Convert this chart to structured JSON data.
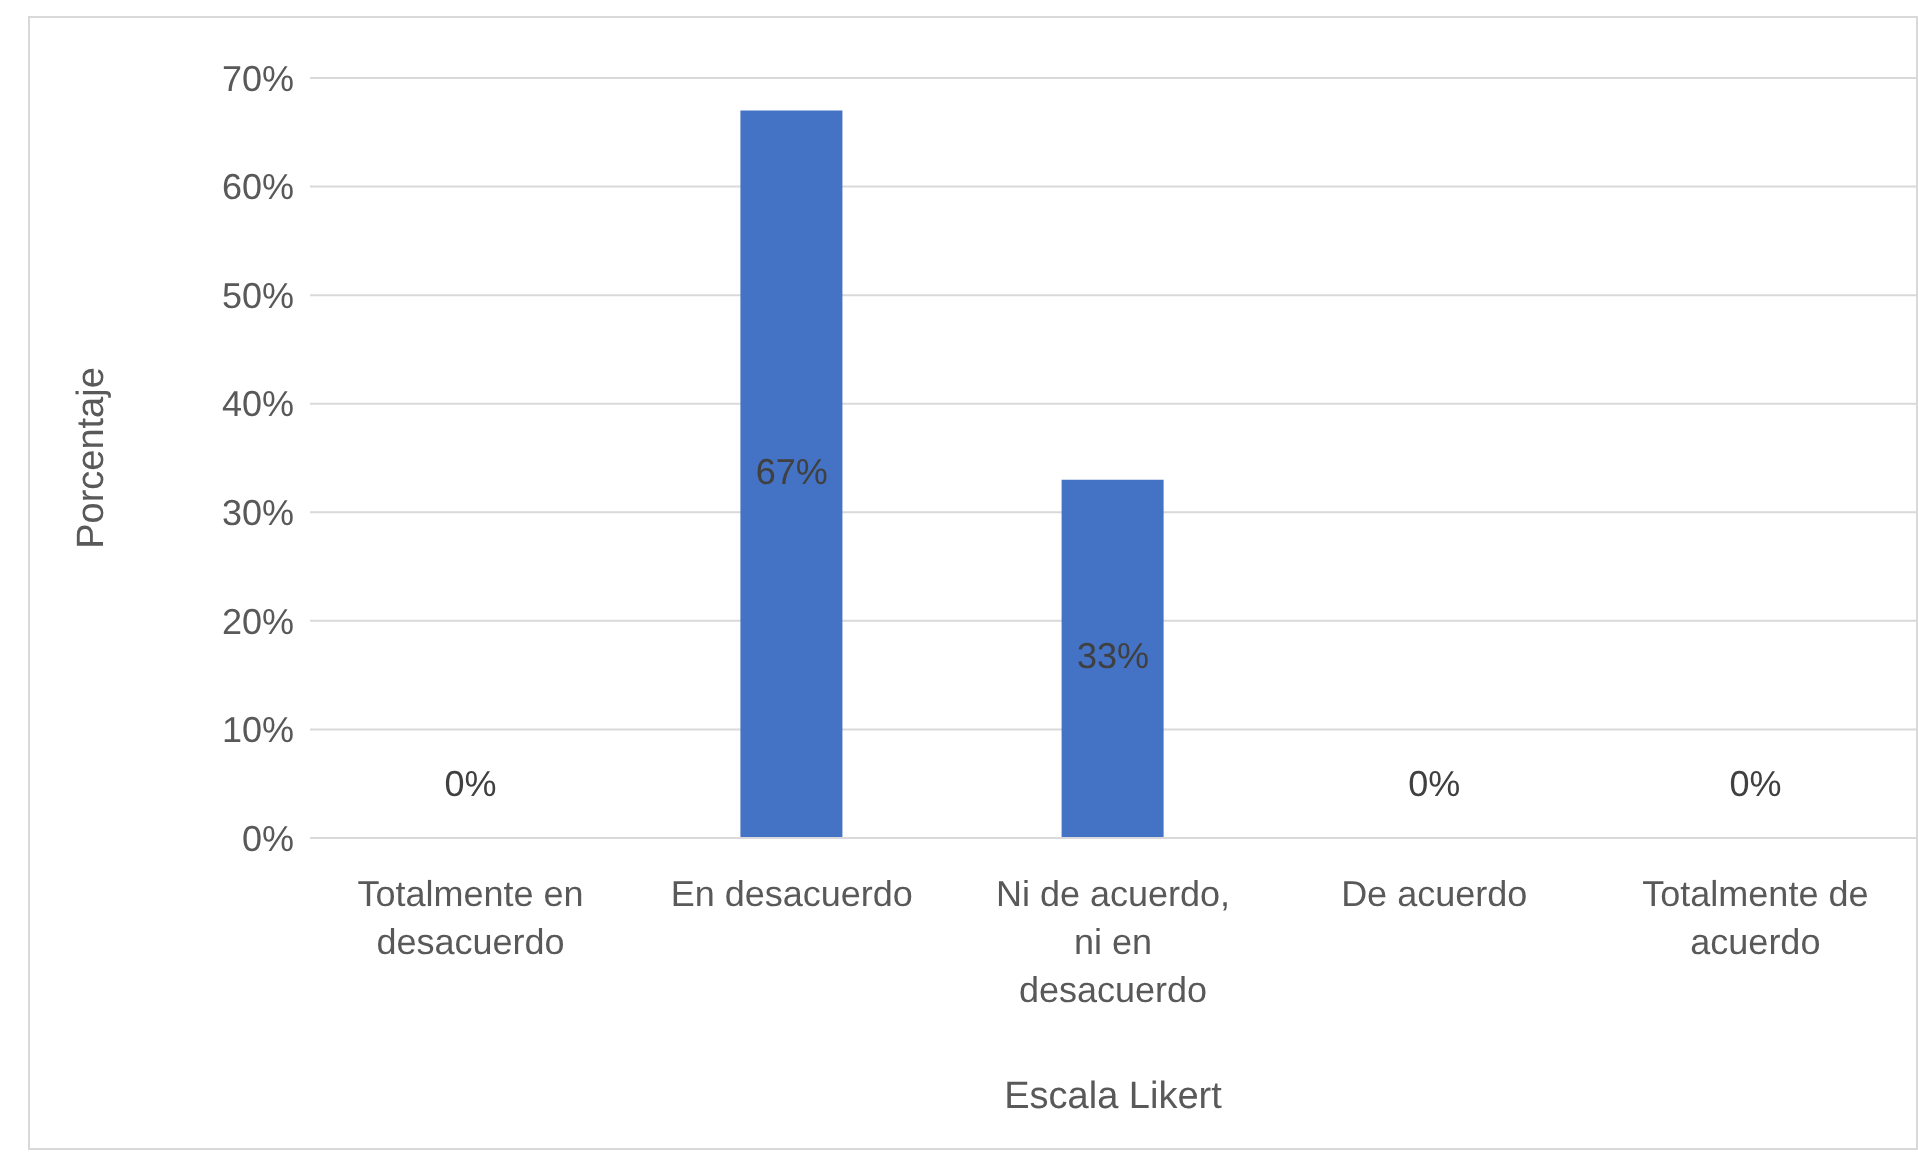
{
  "chart_data": {
    "type": "bar",
    "xlabel": "Escala Likert",
    "ylabel": "Porcentaje",
    "categories": [
      "Totalmente en desacuerdo",
      "En desacuerdo",
      "Ni de acuerdo, ni en desacuerdo",
      "De acuerdo",
      "Totalmente de acuerdo"
    ],
    "values": [
      0,
      67,
      33,
      0,
      0
    ],
    "value_labels": [
      "0%",
      "67%",
      "33%",
      "0%",
      "0%"
    ],
    "color": "#4472c4",
    "ylim": [
      0,
      70
    ],
    "yticks": [
      {
        "value": 0,
        "label": "0%"
      },
      {
        "value": 10,
        "label": "10%"
      },
      {
        "value": 20,
        "label": "20%"
      },
      {
        "value": 30,
        "label": "30%"
      },
      {
        "value": 40,
        "label": "40%"
      },
      {
        "value": 50,
        "label": "50%"
      },
      {
        "value": 60,
        "label": "60%"
      },
      {
        "value": 70,
        "label": "70%"
      }
    ],
    "grid": "y"
  }
}
